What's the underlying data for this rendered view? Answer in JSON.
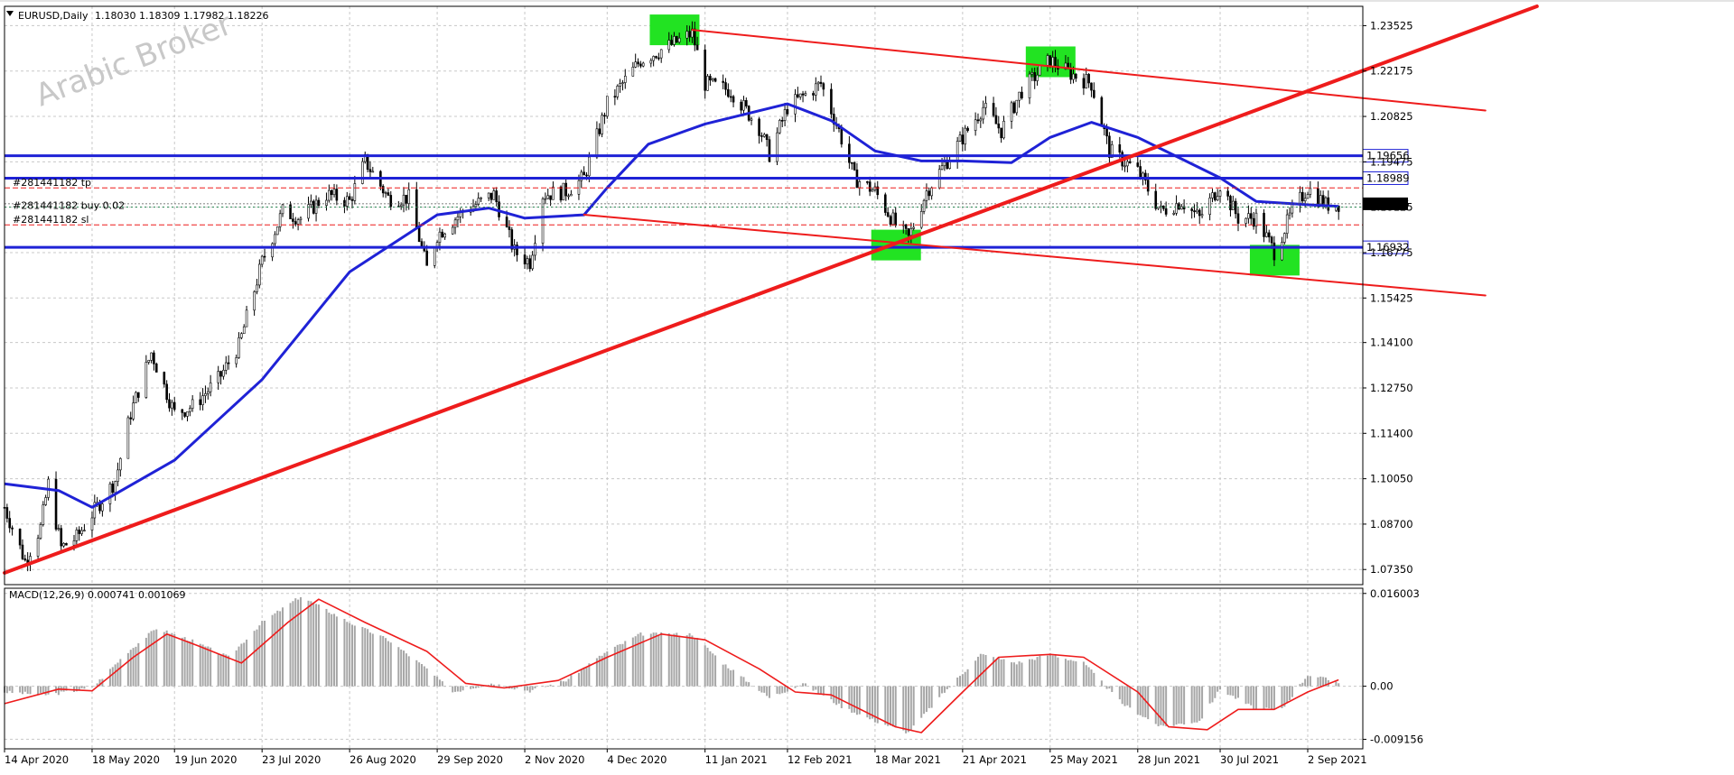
{
  "header": {
    "symbol": "EURUSD,Daily",
    "ohlc": "1.18030 1.18309 1.17982 1.18226"
  },
  "watermark": "Arabic Broker",
  "colors": {
    "candle": "#000000",
    "ma": "#1f22d6",
    "trend": "#ee1c1c",
    "level": "#1f22d6",
    "highlight": "#22e322",
    "macd_hist": "#a6a6a6",
    "macd_signal": "#ee1c1c",
    "price_tag": "#000000"
  },
  "chart_data": [
    {
      "type": "candlestick",
      "title": "EURUSD,Daily",
      "x_ticks": [
        "14 Apr 2020",
        "18 May 2020",
        "19 Jun 2020",
        "23 Jul 2020",
        "26 Aug 2020",
        "29 Sep 2020",
        "2 Nov 2020",
        "4 Dec 2020",
        "11 Jan 2021",
        "12 Feb 2021",
        "18 Mar 2021",
        "21 Apr 2021",
        "25 May 2021",
        "28 Jun 2021",
        "30 Jul 2021",
        "2 Sep 2021"
      ],
      "y_ticks": [
        "1.23525",
        "1.22175",
        "1.20825",
        "1.19475",
        "1.18125",
        "1.16775",
        "1.15425",
        "1.14100",
        "1.12750",
        "1.11400",
        "1.10050",
        "1.08700",
        "1.07350"
      ],
      "ylim": [
        1.069,
        1.241
      ],
      "current_price": "1.18226",
      "price_path": [
        [
          "14 Apr 2020",
          1.092
        ],
        [
          "22 Apr 2020",
          1.076
        ],
        [
          "28 Apr 2020",
          1.086
        ],
        [
          "1 May 2020",
          1.099
        ],
        [
          "6 May 2020",
          1.08
        ],
        [
          "12 May 2020",
          1.083
        ],
        [
          "18 May 2020",
          1.09
        ],
        [
          "27 May 2020",
          1.1
        ],
        [
          "2 Jun 2020",
          1.12
        ],
        [
          "10 Jun 2020",
          1.138
        ],
        [
          "19 Jun 2020",
          1.12
        ],
        [
          "26 Jun 2020",
          1.122
        ],
        [
          "6 Jul 2020",
          1.13
        ],
        [
          "14 Jul 2020",
          1.14
        ],
        [
          "23 Jul 2020",
          1.165
        ],
        [
          "31 Jul 2020",
          1.18
        ],
        [
          "7 Aug 2020",
          1.178
        ],
        [
          "17 Aug 2020",
          1.185
        ],
        [
          "26 Aug 2020",
          1.183
        ],
        [
          "1 Sep 2020",
          1.195
        ],
        [
          "10 Sep 2020",
          1.184
        ],
        [
          "18 Sep 2020",
          1.184
        ],
        [
          "25 Sep 2020",
          1.163
        ],
        [
          "29 Sep 2020",
          1.173
        ],
        [
          "9 Oct 2020",
          1.18
        ],
        [
          "21 Oct 2020",
          1.185
        ],
        [
          "29 Oct 2020",
          1.168
        ],
        [
          "4 Nov 2020",
          1.165
        ],
        [
          "9 Nov 2020",
          1.185
        ],
        [
          "18 Nov 2020",
          1.186
        ],
        [
          "25 Nov 2020",
          1.19
        ],
        [
          "4 Dec 2020",
          1.212
        ],
        [
          "17 Dec 2020",
          1.225
        ],
        [
          "30 Dec 2020",
          1.23
        ],
        [
          "6 Jan 2021",
          1.233
        ],
        [
          "11 Jan 2021",
          1.218
        ],
        [
          "21 Jan 2021",
          1.216
        ],
        [
          "1 Feb 2021",
          1.205
        ],
        [
          "5 Feb 2021",
          1.197
        ],
        [
          "12 Feb 2021",
          1.211
        ],
        [
          "25 Feb 2021",
          1.218
        ],
        [
          "4 Mar 2021",
          1.204
        ],
        [
          "10 Mar 2021",
          1.19
        ],
        [
          "18 Mar 2021",
          1.186
        ],
        [
          "26 Mar 2021",
          1.176
        ],
        [
          "31 Mar 2021",
          1.172
        ],
        [
          "7 Apr 2021",
          1.186
        ],
        [
          "21 Apr 2021",
          1.202
        ],
        [
          "29 Apr 2021",
          1.211
        ],
        [
          "6 May 2021",
          1.204
        ],
        [
          "14 May 2021",
          1.216
        ],
        [
          "25 May 2021",
          1.225
        ],
        [
          "2 Jun 2021",
          1.221
        ],
        [
          "10 Jun 2021",
          1.218
        ],
        [
          "17 Jun 2021",
          1.198
        ],
        [
          "28 Jun 2021",
          1.192
        ],
        [
          "7 Jul 2021",
          1.18
        ],
        [
          "15 Jul 2021",
          1.183
        ],
        [
          "22 Jul 2021",
          1.178
        ],
        [
          "30 Jul 2021",
          1.188
        ],
        [
          "6 Aug 2021",
          1.178
        ],
        [
          "13 Aug 2021",
          1.178
        ],
        [
          "20 Aug 2021",
          1.168
        ],
        [
          "27 Aug 2021",
          1.18
        ],
        [
          "2 Sep 2021",
          1.187
        ],
        [
          "9 Sep 2021",
          1.182
        ],
        [
          "14 Sep 2021",
          1.18226
        ]
      ],
      "moving_average": [
        [
          "14 Apr 2020",
          1.099
        ],
        [
          "5 May 2020",
          1.097
        ],
        [
          "18 May 2020",
          1.092
        ],
        [
          "19 Jun 2020",
          1.106
        ],
        [
          "23 Jul 2020",
          1.13
        ],
        [
          "26 Aug 2020",
          1.162
        ],
        [
          "29 Sep 2020",
          1.179
        ],
        [
          "19 Oct 2020",
          1.181
        ],
        [
          "2 Nov 2020",
          1.178
        ],
        [
          "25 Nov 2020",
          1.179
        ],
        [
          "4 Dec 2020",
          1.187
        ],
        [
          "20 Dec 2020",
          1.2
        ],
        [
          "11 Jan 2021",
          1.206
        ],
        [
          "12 Feb 2021",
          1.212
        ],
        [
          "1 Mar 2021",
          1.207
        ],
        [
          "18 Mar 2021",
          1.198
        ],
        [
          "5 Apr 2021",
          1.195
        ],
        [
          "21 Apr 2021",
          1.195
        ],
        [
          "10 May 2021",
          1.1945
        ],
        [
          "25 May 2021",
          1.202
        ],
        [
          "10 Jun 2021",
          1.2065
        ],
        [
          "28 Jun 2021",
          1.202
        ],
        [
          "30 Jul 2021",
          1.19
        ],
        [
          "13 Aug 2021",
          1.183
        ],
        [
          "2 Sep 2021",
          1.182
        ],
        [
          "14 Sep 2021",
          1.1815
        ]
      ],
      "horizontal_levels": [
        {
          "value": 1.19656,
          "label": "1.19656"
        },
        {
          "value": 1.18989,
          "label": "1.18989"
        },
        {
          "value": 1.16932,
          "label": "1.16932"
        }
      ],
      "order_lines": [
        {
          "text": "#281441182 tp",
          "value": 1.187
        },
        {
          "text": "#281441182 buy 0.02",
          "value": 1.1813
        },
        {
          "text": "#281441182 sl",
          "value": 1.176
        }
      ],
      "trend_lines": [
        {
          "from": [
            "14 Apr 2020",
            1.0725
          ],
          "to": [
            "30 Nov 2021",
            1.241
          ],
          "weight": "thick"
        },
        {
          "from": [
            "6 Jan 2021",
            1.234
          ],
          "to": [
            "10 Nov 2021",
            1.21
          ],
          "weight": "thin"
        },
        {
          "from": [
            "25 Nov 2020",
            1.179
          ],
          "to": [
            "10 Nov 2021",
            1.155
          ],
          "weight": "thin"
        }
      ],
      "highlights": [
        {
          "date": "30 Dec 2020",
          "value": 1.234
        },
        {
          "date": "25 May 2021",
          "value": 1.2245
        },
        {
          "date": "26 Mar 2021",
          "value": 1.17
        },
        {
          "date": "20 Aug 2021",
          "value": 1.1655
        }
      ]
    },
    {
      "type": "bar",
      "title": "MACD(12,26,9) 0.000741 0.001069",
      "y_ticks": [
        "0.016003",
        "0.00",
        "-0.009156"
      ],
      "ylim": [
        -0.0108,
        0.0169
      ],
      "histogram": [
        [
          "14 Apr 2020",
          -0.001
        ],
        [
          "1 May 2020",
          -0.0015
        ],
        [
          "18 May 2020",
          -0.0003
        ],
        [
          "1 Jun 2020",
          0.006
        ],
        [
          "12 Jun 2020",
          0.01
        ],
        [
          "25 Jun 2020",
          0.008
        ],
        [
          "10 Jul 2020",
          0.005
        ],
        [
          "23 Jul 2020",
          0.011
        ],
        [
          "7 Aug 2020",
          0.0155
        ],
        [
          "26 Aug 2020",
          0.011
        ],
        [
          "10 Sep 2020",
          0.008
        ],
        [
          "25 Sep 2020",
          0.003
        ],
        [
          "5 Oct 2020",
          -0.001
        ],
        [
          "20 Oct 2020",
          0.0005
        ],
        [
          "4 Nov 2020",
          -0.0008
        ],
        [
          "18 Nov 2020",
          0.001
        ],
        [
          "4 Dec 2020",
          0.006
        ],
        [
          "17 Dec 2020",
          0.009
        ],
        [
          "6 Jan 2021",
          0.009
        ],
        [
          "18 Jan 2021",
          0.004
        ],
        [
          "5 Feb 2021",
          -0.002
        ],
        [
          "18 Feb 2021",
          0.0005
        ],
        [
          "5 Mar 2021",
          -0.0035
        ],
        [
          "18 Mar 2021",
          -0.006
        ],
        [
          "31 Mar 2021",
          -0.008
        ],
        [
          "14 Apr 2021",
          -0.001
        ],
        [
          "28 Apr 2021",
          0.0055
        ],
        [
          "12 May 2021",
          0.004
        ],
        [
          "25 May 2021",
          0.0055
        ],
        [
          "7 Jun 2021",
          0.004
        ],
        [
          "22 Jun 2021",
          -0.003
        ],
        [
          "7 Jul 2021",
          -0.007
        ],
        [
          "22 Jul 2021",
          -0.006
        ],
        [
          "30 Jul 2021",
          -0.0005
        ],
        [
          "13 Aug 2021",
          -0.004
        ],
        [
          "23 Aug 2021",
          -0.004
        ],
        [
          "2 Sep 2021",
          0.002
        ],
        [
          "14 Sep 2021",
          0.0007
        ]
      ],
      "signal": [
        [
          "14 Apr 2020",
          -0.003
        ],
        [
          "5 May 2020",
          -0.0005
        ],
        [
          "18 May 2020",
          -0.0008
        ],
        [
          "3 Jun 2020",
          0.005
        ],
        [
          "16 Jun 2020",
          0.009
        ],
        [
          "28 Jun 2020",
          0.007
        ],
        [
          "15 Jul 2020",
          0.004
        ],
        [
          "2 Aug 2020",
          0.011
        ],
        [
          "14 Aug 2020",
          0.015
        ],
        [
          "1 Sep 2020",
          0.011
        ],
        [
          "25 Sep 2020",
          0.006
        ],
        [
          "10 Oct 2020",
          0.0005
        ],
        [
          "25 Oct 2020",
          -0.0003
        ],
        [
          "15 Nov 2020",
          0.001
        ],
        [
          "4 Dec 2020",
          0.005
        ],
        [
          "25 Dec 2020",
          0.009
        ],
        [
          "11 Jan 2021",
          0.008
        ],
        [
          "1 Feb 2021",
          0.003
        ],
        [
          "15 Feb 2021",
          -0.001
        ],
        [
          "1 Mar 2021",
          -0.0015
        ],
        [
          "26 Mar 2021",
          -0.007
        ],
        [
          "5 Apr 2021",
          -0.008
        ],
        [
          "21 Apr 2021",
          -0.001
        ],
        [
          "5 May 2021",
          0.005
        ],
        [
          "25 May 2021",
          0.0055
        ],
        [
          "7 Jun 2021",
          0.005
        ],
        [
          "28 Jun 2021",
          -0.001
        ],
        [
          "10 Jul 2021",
          -0.007
        ],
        [
          "25 Jul 2021",
          -0.0075
        ],
        [
          "6 Aug 2021",
          -0.004
        ],
        [
          "20 Aug 2021",
          -0.004
        ],
        [
          "2 Sep 2021",
          -0.001
        ],
        [
          "14 Sep 2021",
          0.0011
        ]
      ]
    }
  ]
}
